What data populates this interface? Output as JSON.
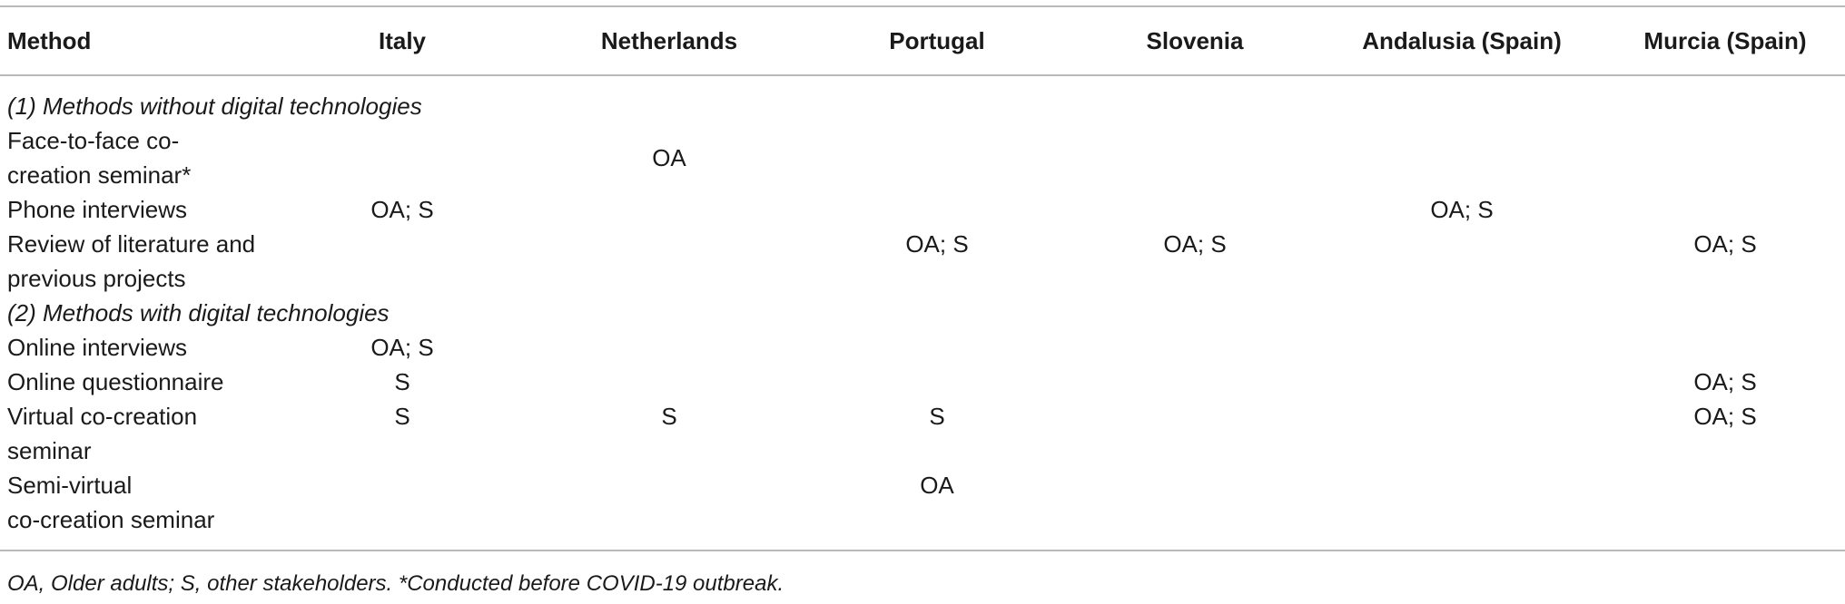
{
  "table": {
    "headers": [
      "Method",
      "Italy",
      "Netherlands",
      "Portugal",
      "Slovenia",
      "Andalusia (Spain)",
      "Murcia (Spain)"
    ],
    "sections": [
      {
        "title": "(1) Methods without digital technologies",
        "rows": [
          {
            "method_lines": [
              "Face-to-face co-",
              "creation seminar*"
            ],
            "cells": [
              "",
              "OA",
              "",
              "",
              "",
              ""
            ]
          },
          {
            "method_lines": [
              "Phone interviews"
            ],
            "cells": [
              "OA; S",
              "",
              "",
              "",
              "OA; S",
              ""
            ]
          },
          {
            "method_lines": [
              "Review of literature and",
              "previous projects"
            ],
            "cells": [
              "",
              "",
              "OA; S",
              "OA; S",
              "",
              "OA; S"
            ]
          }
        ]
      },
      {
        "title": "(2) Methods with digital technologies",
        "rows": [
          {
            "method_lines": [
              "Online interviews"
            ],
            "cells": [
              "OA; S",
              "",
              "",
              "",
              "",
              ""
            ]
          },
          {
            "method_lines": [
              "Online questionnaire"
            ],
            "cells": [
              "S",
              "",
              "",
              "",
              "",
              "OA; S"
            ]
          },
          {
            "method_lines": [
              "Virtual co-creation",
              "seminar"
            ],
            "cells": [
              "S",
              "S",
              "S",
              "",
              "",
              "OA; S"
            ]
          },
          {
            "method_lines": [
              "Semi-virtual",
              "co-creation seminar"
            ],
            "cells": [
              "",
              "",
              "OA",
              "",
              "",
              ""
            ]
          }
        ]
      }
    ]
  },
  "footnote": "OA, Older adults; S, other stakeholders. *Conducted before COVID-19 outbreak."
}
